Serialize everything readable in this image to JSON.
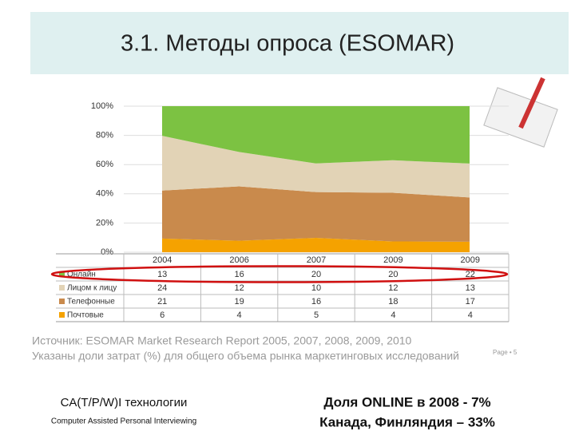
{
  "title": "3.1. Методы опроса (ESOMAR)",
  "chart_data": {
    "type": "area",
    "percent_stacked": true,
    "grid": true,
    "categories": [
      "2004",
      "2006",
      "2007",
      "2009",
      "2009"
    ],
    "series": [
      {
        "name": "Онлайн",
        "color": "#7cc242",
        "values": [
          13,
          16,
          20,
          20,
          22
        ]
      },
      {
        "name": "Лицом к лицу",
        "color": "#e2d3b6",
        "values": [
          24,
          12,
          10,
          12,
          13
        ]
      },
      {
        "name": "Телефонные",
        "color": "#c98a4c",
        "values": [
          21,
          19,
          16,
          18,
          17
        ]
      },
      {
        "name": "Почтовые",
        "color": "#f5a200",
        "values": [
          6,
          4,
          5,
          4,
          4
        ]
      }
    ],
    "ylim": [
      0,
      100
    ],
    "yticks": [
      {
        "value": 0,
        "label": "0%"
      },
      {
        "value": 20,
        "label": "20%"
      },
      {
        "value": 40,
        "label": "40%"
      },
      {
        "value": 60,
        "label": "60%"
      },
      {
        "value": 80,
        "label": "80%"
      },
      {
        "value": 100,
        "label": "100%"
      }
    ]
  },
  "source": [
    "Источник: ESOMAR Market Research Report 2005, 2007, 2008, 2009, 2010",
    "Указаны доли затрат (%) для общего объема рынка маркетинговых исследований"
  ],
  "page": "Page • 5",
  "bottom_left": {
    "title": "CA(T/P/W)I технологии",
    "subtitle": "Computer Assisted Personal Interviewing"
  },
  "bottom_right": [
    "Доля ONLINE в 2008 - 7%",
    "Канада, Финляндия – 33%"
  ]
}
